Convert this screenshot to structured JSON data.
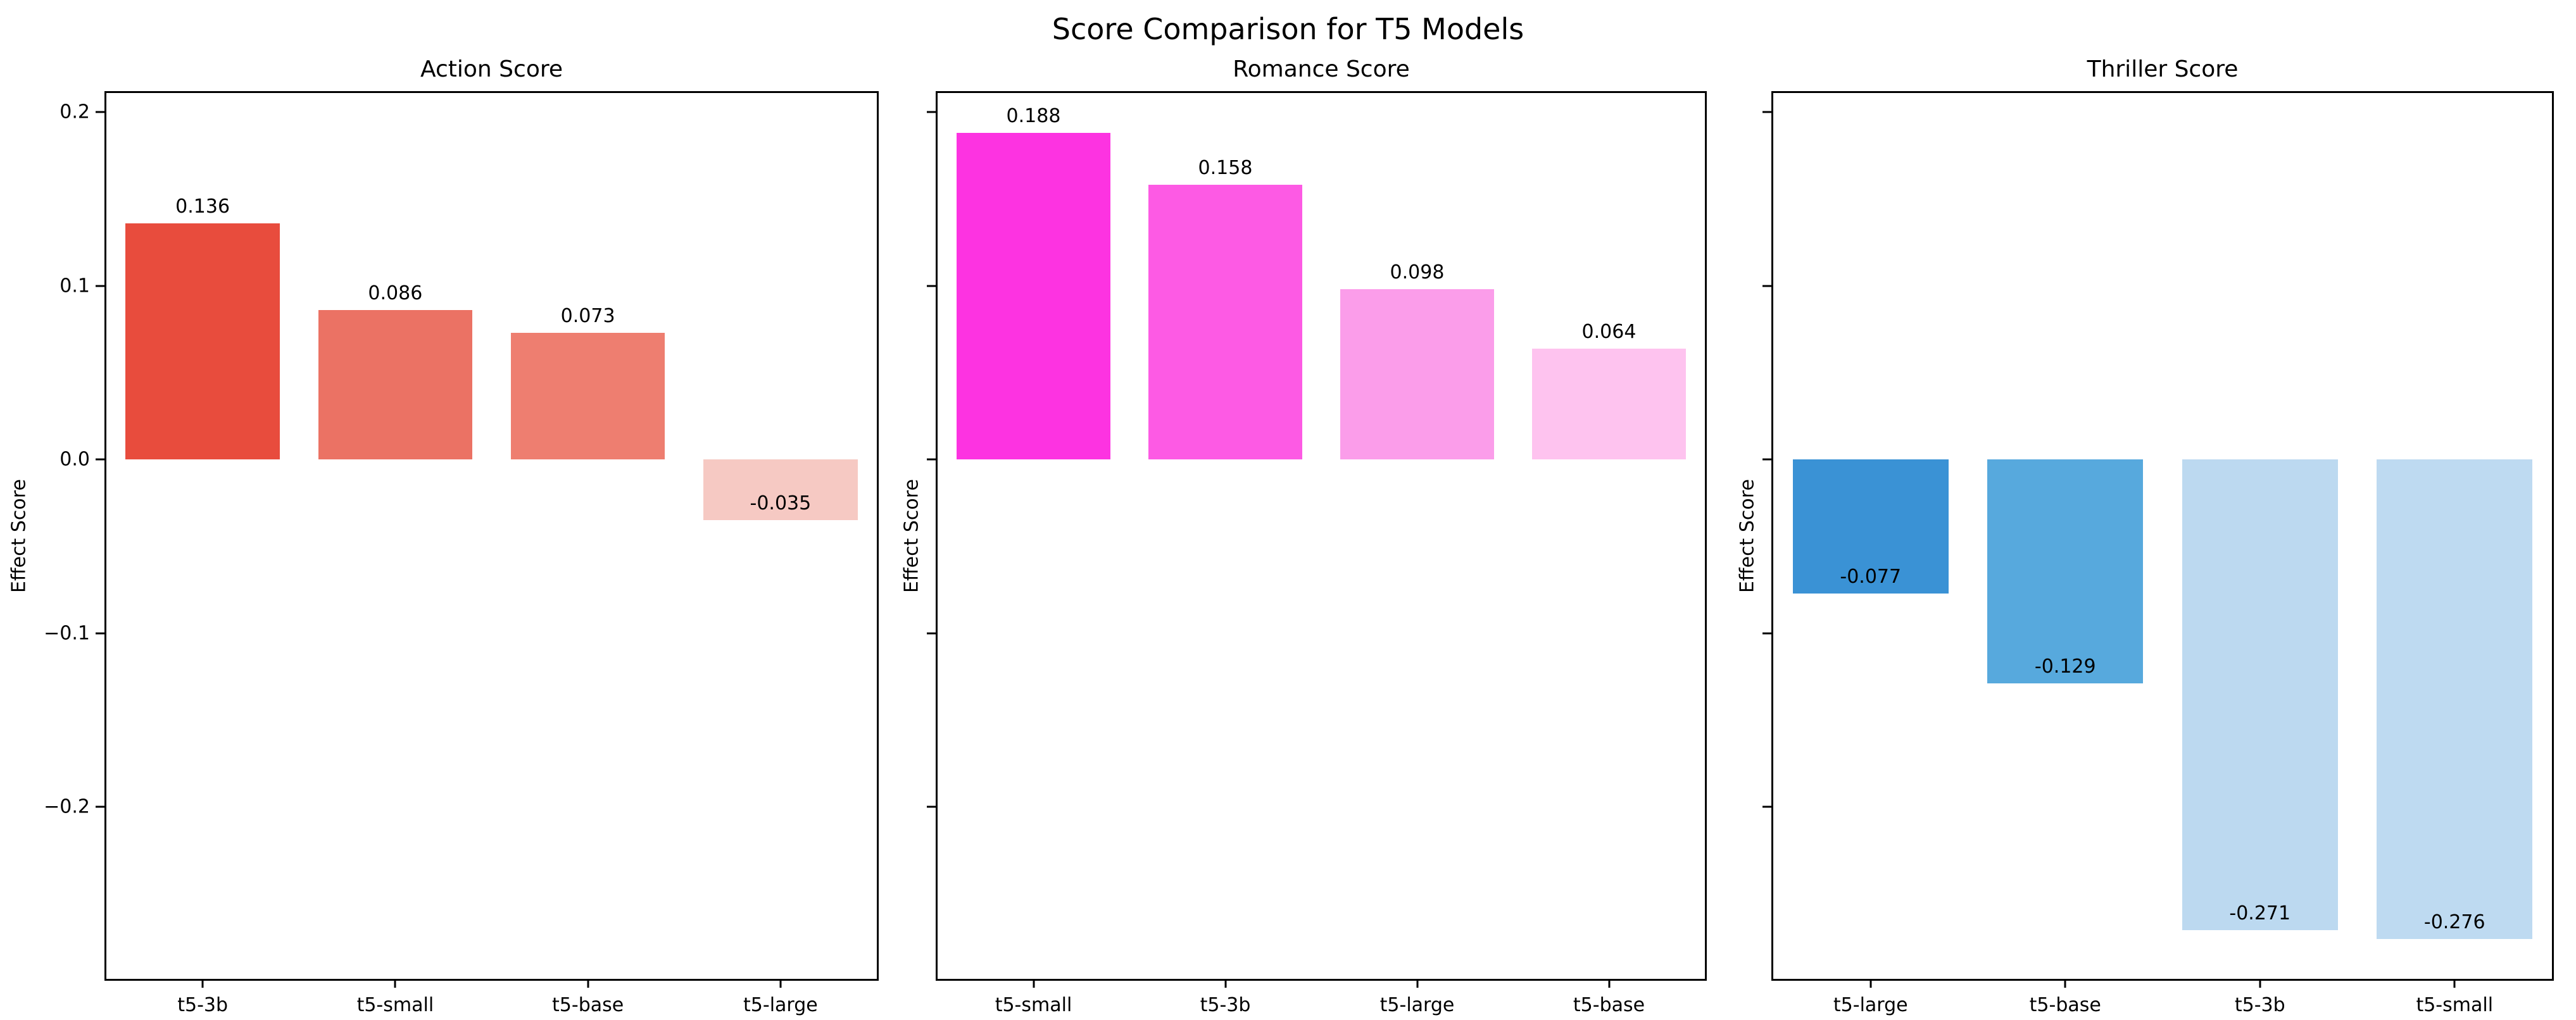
{
  "figure": {
    "title": "Score Comparison for T5 Models",
    "background_color": "#ffffff",
    "text_color": "#000000"
  },
  "axis": {
    "ylabel": "Effect Score",
    "ylim": [
      -0.299,
      0.211
    ],
    "yticks": [
      {
        "value": 0.2,
        "label": "0.2"
      },
      {
        "value": 0.1,
        "label": "0.1"
      },
      {
        "value": 0.0,
        "label": "0.0"
      },
      {
        "value": -0.1,
        "label": "−0.1"
      },
      {
        "value": -0.2,
        "label": "−0.2"
      }
    ],
    "grid": false,
    "legend": "none"
  },
  "chart_data": [
    {
      "type": "bar",
      "title": "Action Score",
      "ylabel": "Effect Score",
      "categories": [
        "t5-3b",
        "t5-small",
        "t5-base",
        "t5-large"
      ],
      "values": [
        0.136,
        0.086,
        0.073,
        -0.035
      ],
      "value_labels": [
        "0.136",
        "0.086",
        "0.073",
        "-0.035"
      ],
      "bar_colors": [
        "#e84c3d",
        "#eb7264",
        "#ee7e70",
        "#f6c9c3"
      ],
      "show_ytick_labels": true,
      "ylim": [
        -0.299,
        0.211
      ]
    },
    {
      "type": "bar",
      "title": "Romance Score",
      "ylabel": "Effect Score",
      "categories": [
        "t5-small",
        "t5-3b",
        "t5-large",
        "t5-base"
      ],
      "values": [
        0.188,
        0.158,
        0.098,
        0.064
      ],
      "value_labels": [
        "0.188",
        "0.158",
        "0.098",
        "0.064"
      ],
      "bar_colors": [
        "#fd33e1",
        "#fd5ae4",
        "#fb9dea",
        "#fec3ef"
      ],
      "show_ytick_labels": false,
      "ylim": [
        -0.299,
        0.211
      ]
    },
    {
      "type": "bar",
      "title": "Thriller Score",
      "ylabel": "Effect Score",
      "categories": [
        "t5-large",
        "t5-base",
        "t5-3b",
        "t5-small"
      ],
      "values": [
        -0.077,
        -0.129,
        -0.271,
        -0.276
      ],
      "value_labels": [
        "-0.077",
        "-0.129",
        "-0.271",
        "-0.276"
      ],
      "bar_colors": [
        "#3a92d5",
        "#57a9dd",
        "#bcd9f0",
        "#bedaf1"
      ],
      "show_ytick_labels": false,
      "ylim": [
        -0.299,
        0.211
      ]
    }
  ]
}
